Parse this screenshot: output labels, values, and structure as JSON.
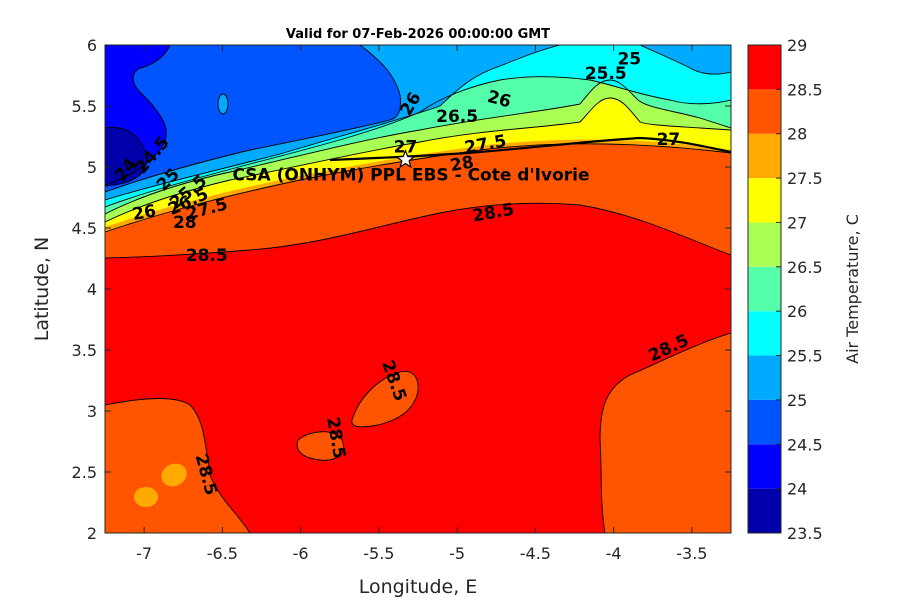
{
  "chart_data": {
    "type": "contour",
    "title": "Valid for 07-Feb-2026 00:00:00 GMT",
    "xlabel": "Longitude, E",
    "ylabel": "Latitude, N",
    "xlim": [
      -7.25,
      -3.25
    ],
    "ylim": [
      2,
      6
    ],
    "x_ticks": [
      "-7",
      "-6.5",
      "-6",
      "-5.5",
      "-5",
      "-4.5",
      "-4",
      "-3.5"
    ],
    "y_ticks": [
      "2",
      "2.5",
      "3",
      "3.5",
      "4",
      "4.5",
      "5",
      "5.5",
      "6"
    ],
    "colorbar": {
      "label": "Air Temperature, C",
      "ticks": [
        "23.5",
        "24",
        "24.5",
        "25",
        "25.5",
        "26",
        "26.5",
        "27",
        "27.5",
        "28",
        "28.5",
        "29"
      ],
      "levels": [
        23.5,
        24,
        24.5,
        25,
        25.5,
        26,
        26.5,
        27,
        27.5,
        28,
        28.5,
        29
      ],
      "colors": [
        "#0000aa",
        "#0000ff",
        "#0055ff",
        "#00aaff",
        "#00ffff",
        "#55ffaa",
        "#aaff55",
        "#ffff00",
        "#ffaa00",
        "#ff5500",
        "#ff0000",
        "#aa0000"
      ]
    },
    "site": {
      "name": "CSA (ONHYM) PPL EBS - Cote d'Ivorie",
      "lon": -5.33,
      "lat": 5.06
    },
    "contour_labels": [
      {
        "text": "24",
        "lon": -7.12,
        "lat": 4.98,
        "rot": -50
      },
      {
        "text": "24.5",
        "lon": -6.95,
        "lat": 5.1,
        "rot": -50
      },
      {
        "text": "25",
        "lon": -6.85,
        "lat": 4.9,
        "rot": -45
      },
      {
        "text": "25.5",
        "lon": -6.72,
        "lat": 4.8,
        "rot": -40
      },
      {
        "text": "26",
        "lon": -7.0,
        "lat": 4.63,
        "rot": -10
      },
      {
        "text": "26.5",
        "lon": -6.72,
        "lat": 4.72,
        "rot": -25
      },
      {
        "text": "27.5",
        "lon": -6.6,
        "lat": 4.66,
        "rot": -15
      },
      {
        "text": "28",
        "lon": -6.74,
        "lat": 4.55,
        "rot": 0
      },
      {
        "text": "28.5",
        "lon": -6.6,
        "lat": 4.28,
        "rot": 0
      },
      {
        "text": "26",
        "lon": -5.3,
        "lat": 5.52,
        "rot": -60
      },
      {
        "text": "26.5",
        "lon": -5.0,
        "lat": 5.42,
        "rot": 0
      },
      {
        "text": "26",
        "lon": -4.73,
        "lat": 5.56,
        "rot": 15
      },
      {
        "text": "25",
        "lon": -3.9,
        "lat": 5.89,
        "rot": 0
      },
      {
        "text": "25.5",
        "lon": -4.05,
        "lat": 5.77,
        "rot": 0
      },
      {
        "text": "27",
        "lon": -5.33,
        "lat": 5.17,
        "rot": 0
      },
      {
        "text": "27.5",
        "lon": -4.82,
        "lat": 5.19,
        "rot": -10
      },
      {
        "text": "28",
        "lon": -4.97,
        "lat": 5.03,
        "rot": -10
      },
      {
        "text": "27",
        "lon": -3.65,
        "lat": 5.23,
        "rot": 0
      },
      {
        "text": "28.5",
        "lon": -4.77,
        "lat": 4.63,
        "rot": -10
      },
      {
        "text": "28.5",
        "lon": -5.4,
        "lat": 3.25,
        "rot": 70
      },
      {
        "text": "28.5",
        "lon": -5.77,
        "lat": 2.78,
        "rot": 80
      },
      {
        "text": "28.5",
        "lon": -6.6,
        "lat": 2.48,
        "rot": 75
      },
      {
        "text": "28.5",
        "lon": -3.65,
        "lat": 3.52,
        "rot": -25
      }
    ]
  }
}
